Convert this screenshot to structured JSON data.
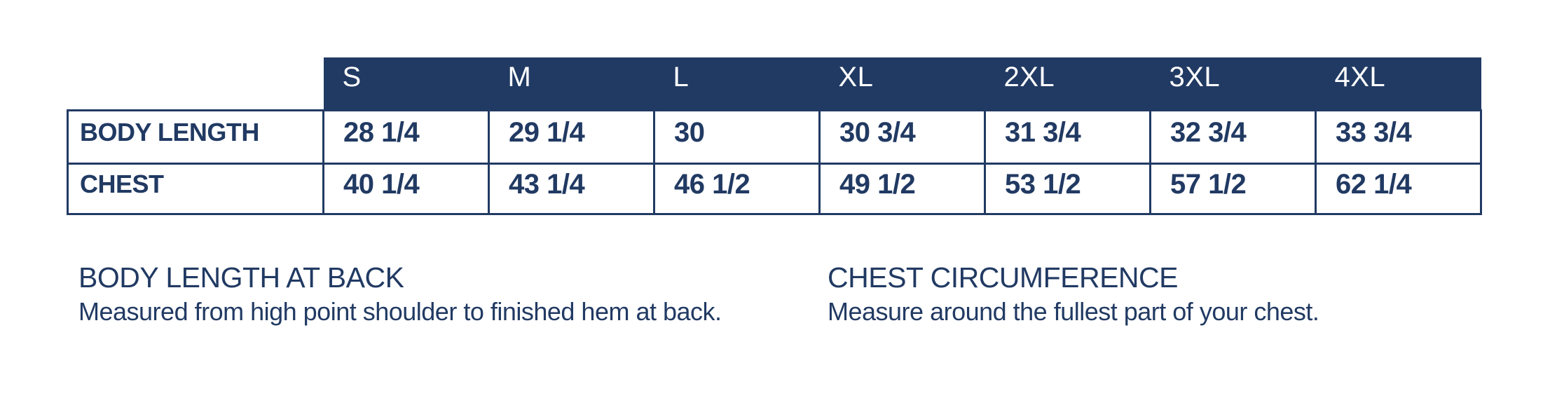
{
  "theme": {
    "navy": "#213A63",
    "header_text": "#FFFFFF",
    "background": "#FFFFFF"
  },
  "chart_data": {
    "type": "table",
    "title": "",
    "columns": [
      "S",
      "M",
      "L",
      "XL",
      "2XL",
      "3XL",
      "4XL"
    ],
    "rows": [
      {
        "label": "BODY LENGTH",
        "values": [
          "28 1/4",
          "29 1/4",
          "30",
          "30 3/4",
          "31 3/4",
          "32 3/4",
          "33 3/4"
        ]
      },
      {
        "label": "CHEST",
        "values": [
          "40 1/4",
          "43 1/4",
          "46 1/2",
          "49 1/2",
          "53 1/2",
          "57 1/2",
          "62 1/4"
        ]
      }
    ]
  },
  "notes": [
    {
      "title": "BODY LENGTH AT BACK",
      "description": "Measured from high point shoulder to finished hem at back."
    },
    {
      "title": "CHEST CIRCUMFERENCE",
      "description": "Measure around the fullest part of your chest."
    }
  ]
}
